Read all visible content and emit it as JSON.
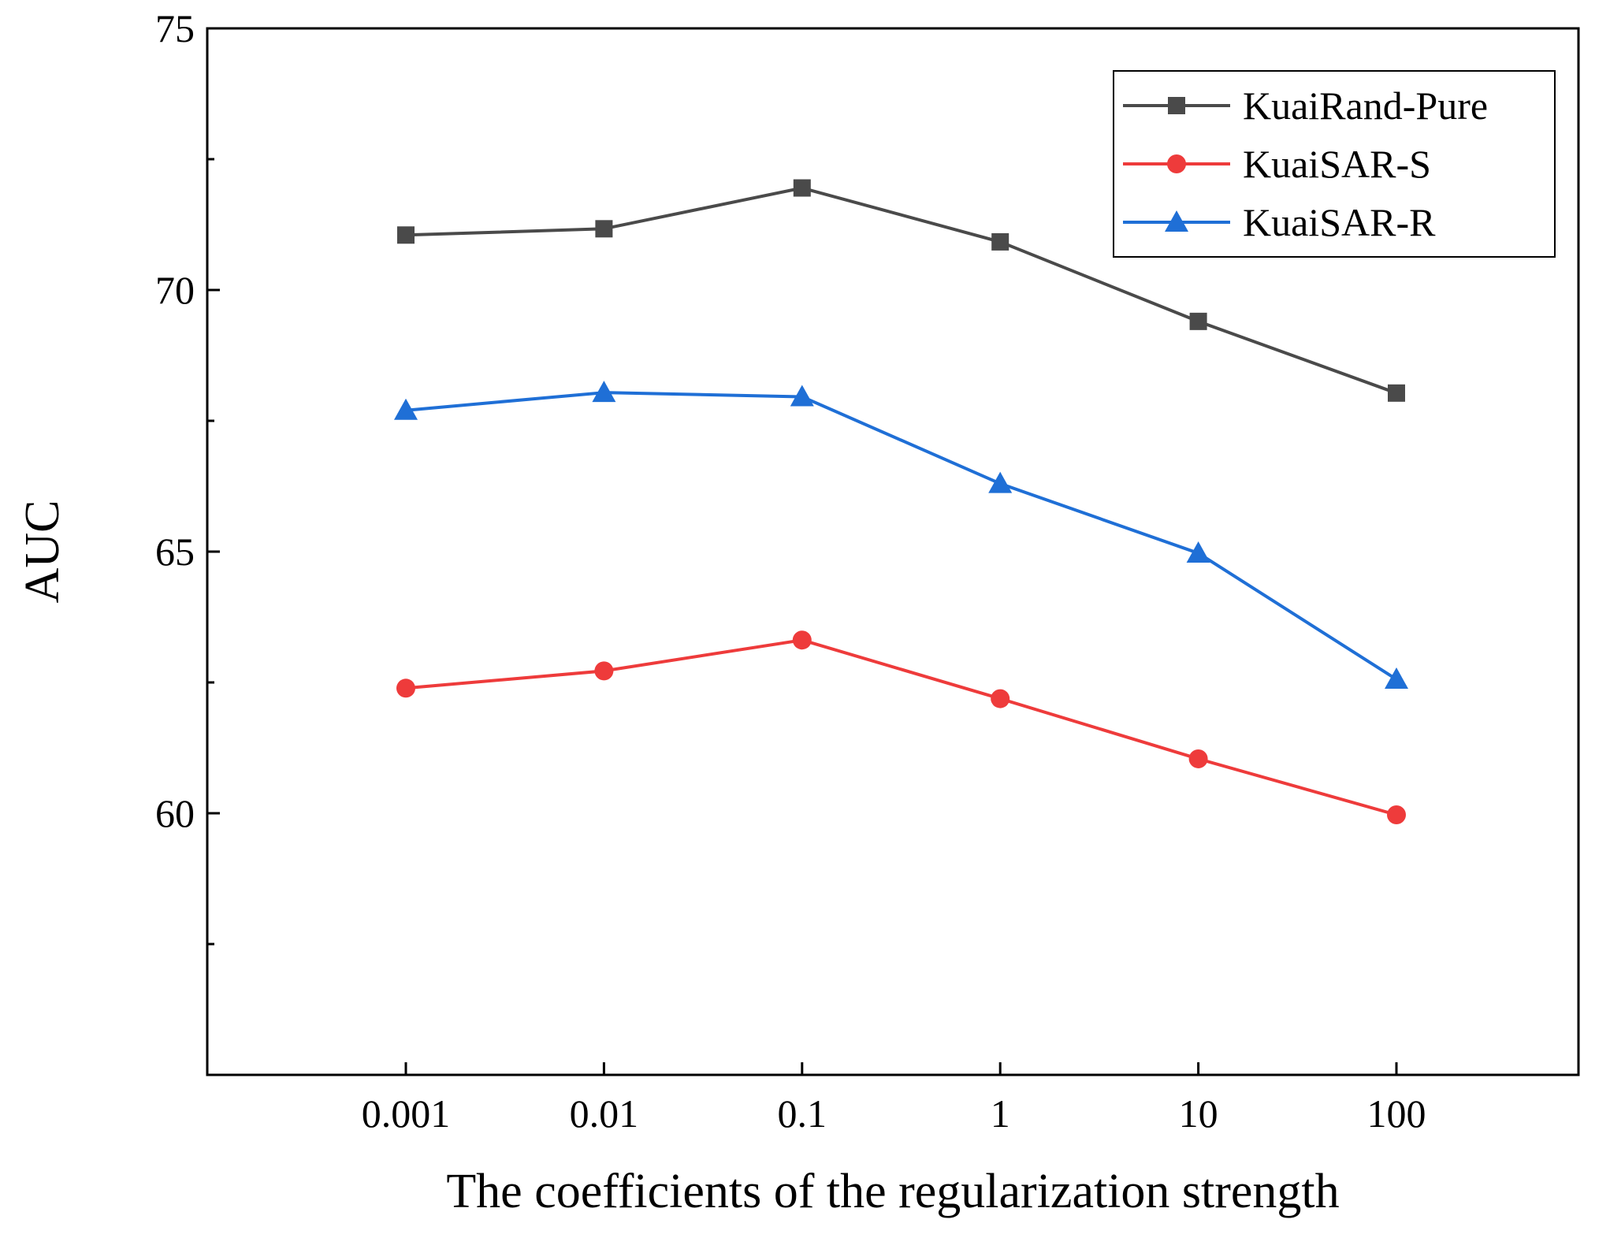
{
  "chart_data": {
    "type": "line",
    "title": "",
    "xlabel": "The coefficients of the regularization strength",
    "ylabel": "AUC",
    "categories": [
      "0.001",
      "0.01",
      "0.1",
      "1",
      "10",
      "100"
    ],
    "ylim": [
      55,
      75
    ],
    "yticks": [
      60,
      65,
      70,
      75
    ],
    "grid": false,
    "legend_position": "top-right",
    "series": [
      {
        "name": "KuaiRand-Pure",
        "marker": "square",
        "color": "#4a4a4a",
        "values": [
          71.05,
          71.17,
          71.95,
          70.92,
          69.4,
          68.03
        ]
      },
      {
        "name": "KuaiSAR-S",
        "marker": "circle",
        "color": "#ee3b3b",
        "values": [
          62.39,
          62.72,
          63.31,
          62.19,
          61.04,
          59.97
        ]
      },
      {
        "name": "KuaiSAR-R",
        "marker": "triangle",
        "color": "#1f6fd6",
        "values": [
          67.7,
          68.04,
          67.96,
          66.3,
          64.97,
          62.56
        ]
      }
    ]
  }
}
